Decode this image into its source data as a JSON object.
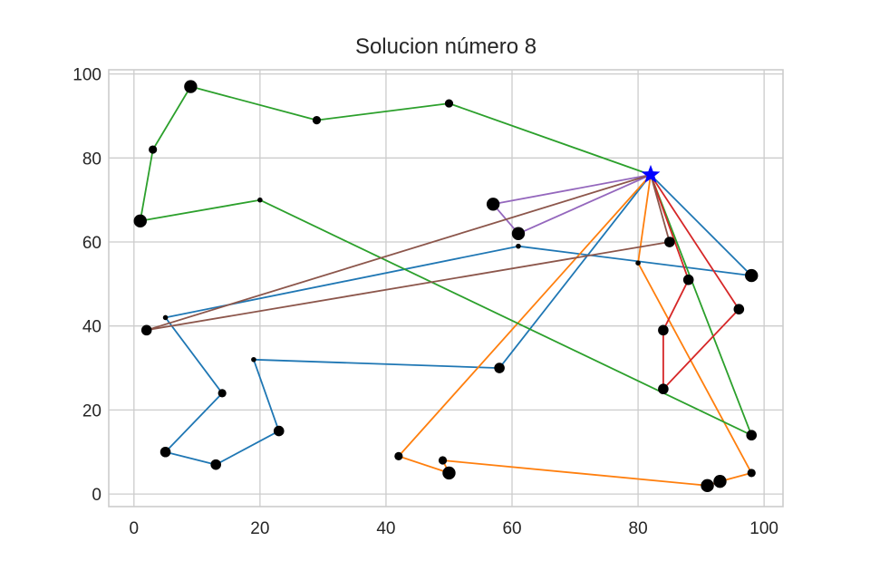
{
  "chart_data": {
    "type": "scatter",
    "title": "Solucion número 8",
    "xlabel": "",
    "ylabel": "",
    "xlim": [
      -4,
      103
    ],
    "ylim": [
      -3,
      101
    ],
    "xticks": [
      0,
      20,
      40,
      60,
      80,
      100
    ],
    "yticks": [
      0,
      20,
      40,
      60,
      80,
      100
    ],
    "grid": true,
    "depot": {
      "x": 82,
      "y": 76,
      "marker": "star",
      "color": "#0000ff"
    },
    "customers": [
      {
        "x": 9,
        "y": 97,
        "size": "large"
      },
      {
        "x": 29,
        "y": 89,
        "size": "small"
      },
      {
        "x": 50,
        "y": 93,
        "size": "small"
      },
      {
        "x": 3,
        "y": 82,
        "size": "small"
      },
      {
        "x": 1,
        "y": 65,
        "size": "large"
      },
      {
        "x": 20,
        "y": 70,
        "size": "tiny"
      },
      {
        "x": 57,
        "y": 69,
        "size": "large"
      },
      {
        "x": 61,
        "y": 62,
        "size": "large"
      },
      {
        "x": 61,
        "y": 59,
        "size": "tiny"
      },
      {
        "x": 85,
        "y": 60,
        "size": "medium"
      },
      {
        "x": 80,
        "y": 55,
        "size": "tiny"
      },
      {
        "x": 98,
        "y": 52,
        "size": "large"
      },
      {
        "x": 88,
        "y": 51,
        "size": "medium"
      },
      {
        "x": 5,
        "y": 42,
        "size": "tiny"
      },
      {
        "x": 2,
        "y": 39,
        "size": "medium"
      },
      {
        "x": 84,
        "y": 39,
        "size": "medium"
      },
      {
        "x": 96,
        "y": 44,
        "size": "medium"
      },
      {
        "x": 19,
        "y": 32,
        "size": "tiny"
      },
      {
        "x": 58,
        "y": 30,
        "size": "medium"
      },
      {
        "x": 84,
        "y": 25,
        "size": "medium"
      },
      {
        "x": 14,
        "y": 24,
        "size": "small"
      },
      {
        "x": 23,
        "y": 15,
        "size": "medium"
      },
      {
        "x": 98,
        "y": 14,
        "size": "medium"
      },
      {
        "x": 5,
        "y": 10,
        "size": "medium"
      },
      {
        "x": 13,
        "y": 7,
        "size": "medium"
      },
      {
        "x": 42,
        "y": 9,
        "size": "small"
      },
      {
        "x": 49,
        "y": 8,
        "size": "small"
      },
      {
        "x": 50,
        "y": 5,
        "size": "large"
      },
      {
        "x": 98,
        "y": 5,
        "size": "small"
      },
      {
        "x": 91,
        "y": 2,
        "size": "large"
      },
      {
        "x": 93,
        "y": 3,
        "size": "large"
      }
    ],
    "series": [
      {
        "name": "route-1",
        "color": "#1f77b4",
        "points": [
          [
            82,
            76
          ],
          [
            98,
            52
          ],
          [
            61,
            59
          ],
          [
            5,
            42
          ],
          [
            14,
            24
          ],
          [
            5,
            10
          ],
          [
            13,
            7
          ],
          [
            23,
            15
          ],
          [
            19,
            32
          ],
          [
            58,
            30
          ],
          [
            82,
            76
          ]
        ]
      },
      {
        "name": "route-2",
        "color": "#ff7f0e",
        "points": [
          [
            82,
            76
          ],
          [
            42,
            9
          ],
          [
            50,
            5
          ],
          [
            49,
            8
          ],
          [
            91,
            2
          ],
          [
            93,
            3
          ],
          [
            98,
            5
          ],
          [
            80,
            55
          ],
          [
            82,
            76
          ]
        ]
      },
      {
        "name": "route-3",
        "color": "#2ca02c",
        "points": [
          [
            82,
            76
          ],
          [
            50,
            93
          ],
          [
            29,
            89
          ],
          [
            9,
            97
          ],
          [
            3,
            82
          ],
          [
            1,
            65
          ],
          [
            20,
            70
          ],
          [
            98,
            14
          ],
          [
            82,
            76
          ]
        ]
      },
      {
        "name": "route-4",
        "color": "#d62728",
        "points": [
          [
            82,
            76
          ],
          [
            88,
            51
          ],
          [
            84,
            39
          ],
          [
            84,
            25
          ],
          [
            96,
            44
          ],
          [
            82,
            76
          ]
        ]
      },
      {
        "name": "route-5",
        "color": "#9467bd",
        "points": [
          [
            82,
            76
          ],
          [
            57,
            69
          ],
          [
            61,
            62
          ],
          [
            82,
            76
          ]
        ]
      },
      {
        "name": "route-6",
        "color": "#8c564b",
        "points": [
          [
            82,
            76
          ],
          [
            85,
            60
          ],
          [
            2,
            39
          ],
          [
            82,
            76
          ]
        ]
      }
    ]
  }
}
